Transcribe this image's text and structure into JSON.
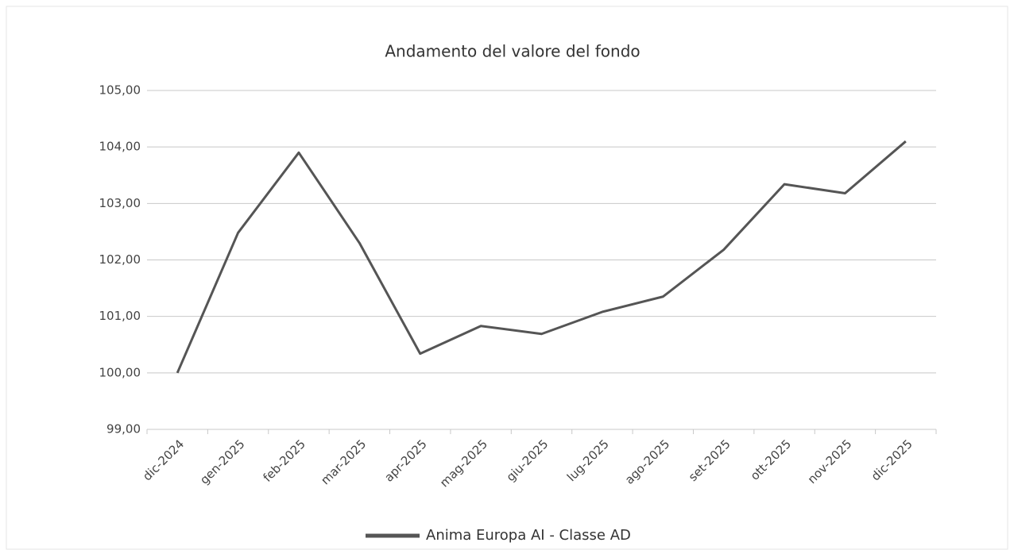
{
  "chart_data": {
    "type": "line",
    "title": "Andamento del valore del fondo",
    "categories": [
      "dic-2024",
      "gen-2025",
      "feb-2025",
      "mar-2025",
      "apr-2025",
      "mag-2025",
      "giu-2025",
      "lug-2025",
      "ago-2025",
      "set-2025",
      "ott-2025",
      "nov-2025",
      "dic-2025"
    ],
    "series": [
      {
        "name": "Anima Europa AI - Classe AD",
        "color": "#555555",
        "values": [
          100.0,
          102.48,
          103.9,
          102.3,
          100.34,
          100.83,
          100.69,
          101.08,
          101.35,
          102.18,
          103.34,
          103.18,
          104.1
        ]
      }
    ],
    "ylim": [
      99,
      105
    ],
    "yticks": [
      {
        "value": 99,
        "label": "99,00"
      },
      {
        "value": 100,
        "label": "100,00"
      },
      {
        "value": 101,
        "label": "101,00"
      },
      {
        "value": 102,
        "label": "102,00"
      },
      {
        "value": 103,
        "label": "103,00"
      },
      {
        "value": 104,
        "label": "104,00"
      },
      {
        "value": 105,
        "label": "105,00"
      }
    ],
    "grid": true,
    "legend": "bottom"
  }
}
